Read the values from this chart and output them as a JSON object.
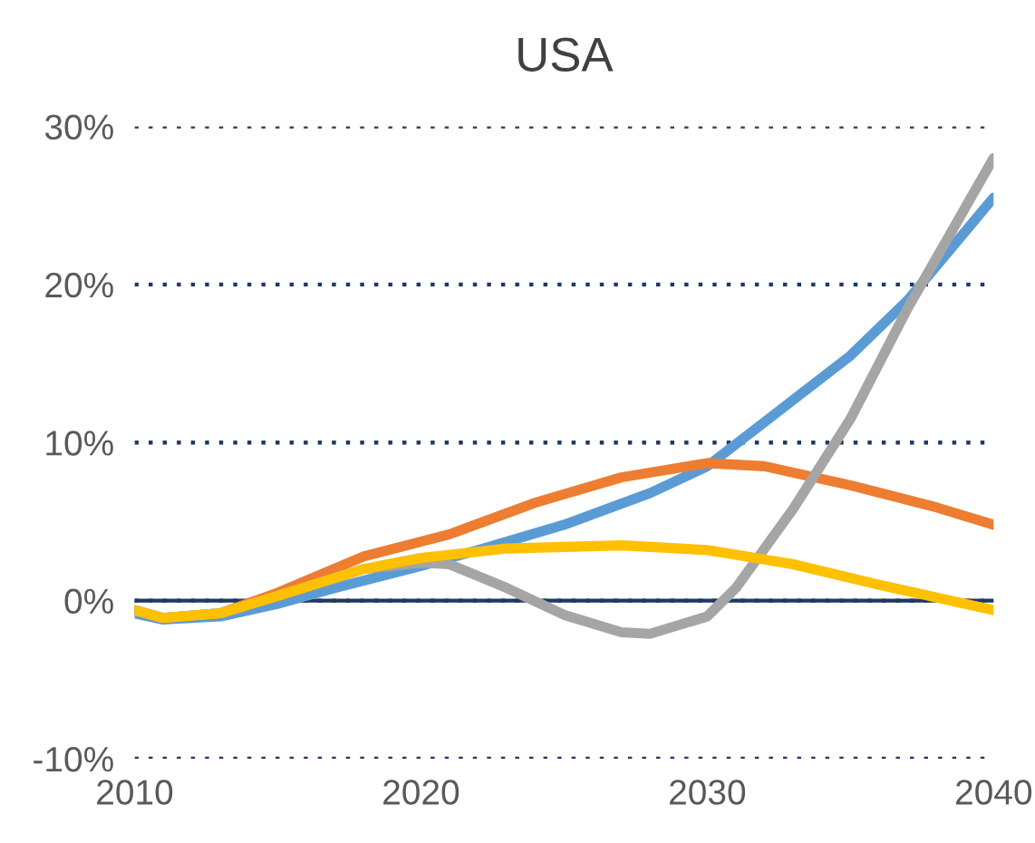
{
  "chart_data": {
    "type": "line",
    "title": "USA",
    "xlim": [
      2010,
      2040
    ],
    "xticks": [
      2010,
      2020,
      2030,
      2040
    ],
    "ylim": [
      -10,
      30
    ],
    "yticks": [
      {
        "value": -10,
        "label": "-10%"
      },
      {
        "value": 0,
        "label": "0%"
      },
      {
        "value": 10,
        "label": "10%"
      },
      {
        "value": 20,
        "label": "20%"
      },
      {
        "value": 30,
        "label": "30%"
      }
    ],
    "grid": "y",
    "line_style": "solid",
    "marker": "none",
    "ref_lines": [
      {
        "axis": "y",
        "value": 0,
        "color": "#1f3864",
        "line_style": "solid"
      }
    ],
    "series": [
      {
        "color": "#5b9bd5",
        "x": [
          2010,
          2011,
          2013,
          2015,
          2017,
          2020,
          2022,
          2025,
          2028,
          2030,
          2032,
          2035,
          2037,
          2040
        ],
        "values": [
          -0.8,
          -1.2,
          -1.0,
          -0.2,
          0.8,
          2.2,
          3.2,
          4.8,
          6.8,
          8.5,
          11.3,
          15.5,
          19,
          25.5
        ]
      },
      {
        "color": "#ed7d31",
        "x": [
          2010,
          2011,
          2013,
          2015,
          2018,
          2021,
          2024,
          2027,
          2030,
          2032,
          2035,
          2038,
          2040
        ],
        "values": [
          -0.6,
          -1.1,
          -0.8,
          0.5,
          2.8,
          4.2,
          6.2,
          7.8,
          8.7,
          8.5,
          7.3,
          5.9,
          4.8
        ]
      },
      {
        "color": "#a5a5a5",
        "x": [
          2010,
          2011,
          2013,
          2015,
          2018,
          2020,
          2021,
          2023,
          2025,
          2027,
          2028,
          2030,
          2031,
          2033,
          2035,
          2037,
          2040
        ],
        "values": [
          -0.6,
          -1.1,
          -0.8,
          0.3,
          2.0,
          2.4,
          2.3,
          0.8,
          -0.9,
          -2.0,
          -2.1,
          -1.0,
          0.8,
          5.8,
          11.5,
          18.5,
          28
        ]
      },
      {
        "color": "#ffc000",
        "x": [
          2010,
          2011,
          2013,
          2015,
          2018,
          2020,
          2023,
          2027,
          2030,
          2033,
          2036,
          2040
        ],
        "values": [
          -0.6,
          -1.1,
          -0.8,
          0.3,
          2.0,
          2.7,
          3.3,
          3.5,
          3.2,
          2.3,
          1.0,
          -0.6
        ]
      }
    ]
  }
}
